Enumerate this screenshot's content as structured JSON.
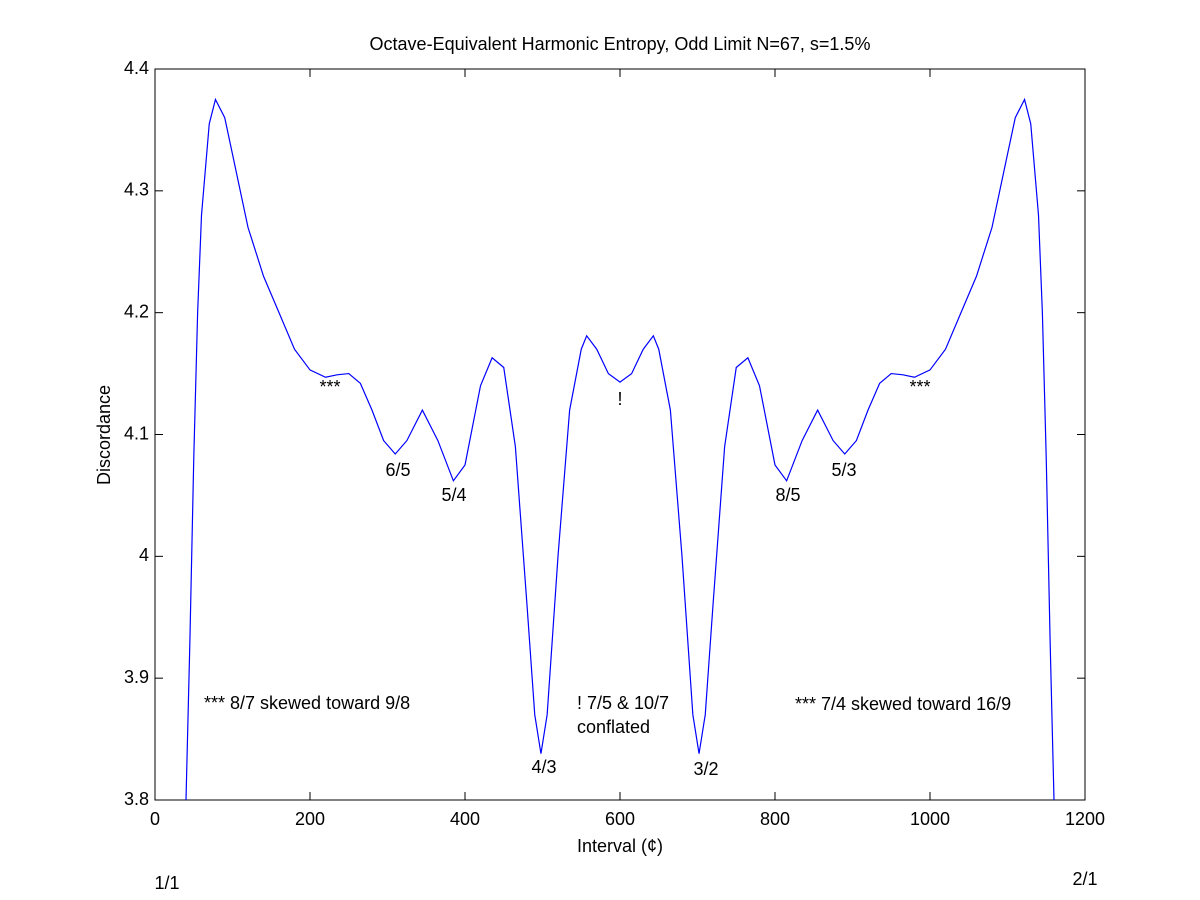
{
  "chart_data": {
    "type": "line",
    "title": "Octave-Equivalent Harmonic Entropy, Odd Limit N=67, s=1.5%",
    "x_label": "Interval (¢)",
    "y_label": "Discordance",
    "x": [
      40,
      45,
      50,
      55,
      60,
      70,
      78,
      90,
      100,
      120,
      140,
      160,
      180,
      200,
      220,
      235,
      250,
      265,
      280,
      295,
      310,
      325,
      345,
      365,
      385,
      400,
      420,
      435,
      450,
      465,
      480,
      490,
      498,
      506,
      520,
      535,
      550,
      557,
      570,
      585,
      600,
      615,
      630,
      643,
      650,
      665,
      680,
      694,
      702,
      710,
      720,
      735,
      750,
      765,
      780,
      800,
      815,
      835,
      855,
      875,
      890,
      905,
      920,
      935,
      950,
      965,
      980,
      1000,
      1020,
      1040,
      1060,
      1080,
      1100,
      1110,
      1122,
      1130,
      1140,
      1145,
      1150,
      1155,
      1160
    ],
    "series": [
      {
        "name": "Discordance",
        "color": "#0000ff",
        "values": [
          3.8,
          3.93,
          4.08,
          4.2,
          4.28,
          4.355,
          4.375,
          4.36,
          4.33,
          4.27,
          4.23,
          4.2,
          4.17,
          4.153,
          4.147,
          4.149,
          4.15,
          4.142,
          4.12,
          4.095,
          4.084,
          4.095,
          4.12,
          4.095,
          4.062,
          4.075,
          4.14,
          4.163,
          4.155,
          4.09,
          3.96,
          3.87,
          3.838,
          3.87,
          4.0,
          4.12,
          4.17,
          4.181,
          4.17,
          4.15,
          4.143,
          4.15,
          4.17,
          4.181,
          4.17,
          4.12,
          4.0,
          3.87,
          3.838,
          3.87,
          3.96,
          4.09,
          4.155,
          4.163,
          4.14,
          4.075,
          4.062,
          4.095,
          4.12,
          4.095,
          4.084,
          4.095,
          4.12,
          4.142,
          4.15,
          4.149,
          4.147,
          4.153,
          4.17,
          4.2,
          4.23,
          4.27,
          4.33,
          4.36,
          4.375,
          4.355,
          4.28,
          4.2,
          4.08,
          3.93,
          3.8
        ]
      }
    ],
    "xlim": [
      0,
      1200
    ],
    "xticks": [
      0,
      200,
      400,
      600,
      800,
      1000,
      1200
    ],
    "ylim": [
      3.8,
      4.4
    ],
    "yticks": [
      3.8,
      3.9,
      4,
      4.1,
      4.2,
      4.3,
      4.4
    ],
    "grid": false,
    "annotations": [
      "***",
      "6/5",
      "5/4",
      "4/3",
      "!",
      "3/2",
      "8/5",
      "5/3",
      "***",
      "*** 8/7 skewed toward 9/8",
      "! 7/5 & 10/7",
      "conflated",
      "*** 7/4 skewed toward 16/9",
      "1/1",
      "2/1"
    ]
  }
}
